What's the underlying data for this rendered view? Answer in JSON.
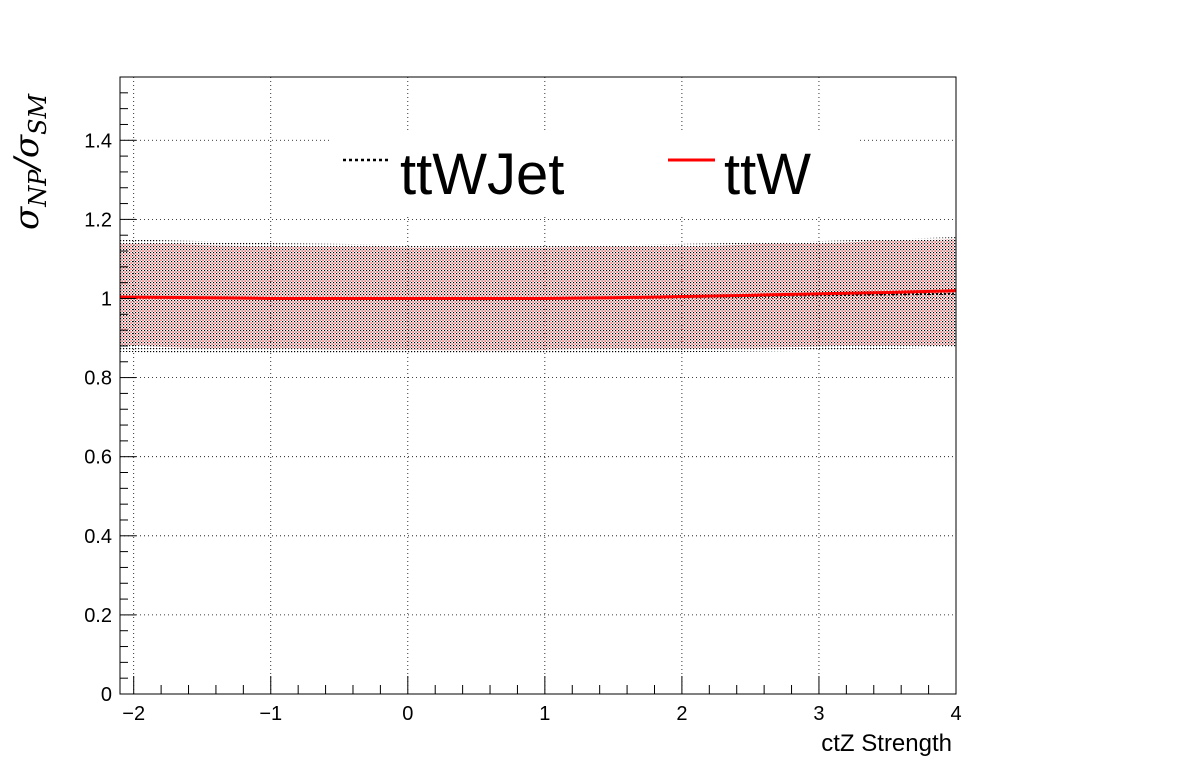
{
  "chart_data": {
    "type": "line",
    "xlabel": "ctZ Strength",
    "ylabel": {
      "base1": "σ",
      "sub1": "NP",
      "sep": "/",
      "base2": "σ",
      "sub2": "SM"
    },
    "xlim": [
      -2.1,
      4.0
    ],
    "ylim": [
      0,
      1.56
    ],
    "xticks": [
      -2,
      -1,
      0,
      1,
      2,
      3,
      4
    ],
    "xtick_labels": [
      "−2",
      "−1",
      "0",
      "1",
      "2",
      "3",
      "4"
    ],
    "yticks": [
      0,
      0.2,
      0.4,
      0.6,
      0.8,
      1,
      1.2,
      1.4
    ],
    "ytick_labels": [
      "0",
      "0.2",
      "0.4",
      "0.6",
      "0.8",
      "1",
      "1.2",
      "1.4"
    ],
    "grid": true,
    "legend_position": "top",
    "series": [
      {
        "name": "ttWJet",
        "style": "dotted",
        "color": "#000000",
        "x": [
          -2.1,
          -1.5,
          -1.0,
          -0.5,
          0.0,
          0.5,
          1.0,
          1.5,
          2.0,
          2.5,
          3.0,
          3.5,
          4.0
        ],
        "y": [
          1.005,
          1.002,
          1.0,
          1.0,
          1.0,
          0.998,
          1.0,
          1.002,
          1.004,
          1.006,
          1.008,
          1.01,
          1.012
        ],
        "band_low": [
          0.865,
          0.862,
          0.862,
          0.862,
          0.862,
          0.862,
          0.862,
          0.863,
          0.864,
          0.866,
          0.868,
          0.872,
          0.877
        ],
        "band_high": [
          1.15,
          1.145,
          1.14,
          1.138,
          1.136,
          1.134,
          1.134,
          1.136,
          1.138,
          1.141,
          1.145,
          1.15,
          1.155
        ]
      },
      {
        "name": "ttW",
        "style": "solid",
        "color": "#ff0000",
        "x": [
          -2.1,
          -1.5,
          -1.0,
          -0.5,
          0.0,
          0.5,
          1.0,
          1.5,
          2.0,
          2.5,
          3.0,
          3.5,
          4.0
        ],
        "y": [
          1.004,
          1.002,
          1.0,
          1.0,
          1.0,
          1.0,
          1.0,
          1.002,
          1.005,
          1.008,
          1.012,
          1.015,
          1.02
        ],
        "band_low": [
          0.88,
          0.875,
          0.872,
          0.87,
          0.87,
          0.869,
          0.87,
          0.872,
          0.874,
          0.876,
          0.878,
          0.88,
          0.882
        ],
        "band_high": [
          1.14,
          1.135,
          1.132,
          1.13,
          1.128,
          1.128,
          1.128,
          1.13,
          1.132,
          1.136,
          1.14,
          1.145,
          1.15
        ]
      }
    ]
  }
}
